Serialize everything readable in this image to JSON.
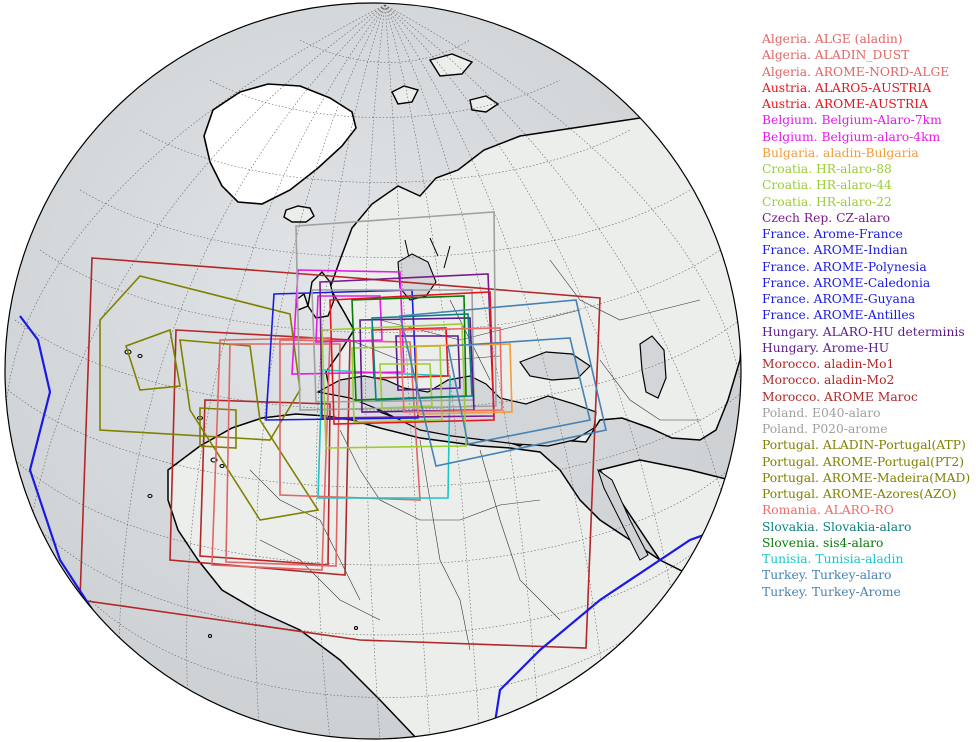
{
  "domains": [
    {
      "label": "Algeria. ALGE (aladin)",
      "color": "#e06666"
    },
    {
      "label": "Algeria. ALADIN_DUST",
      "color": "#e06666"
    },
    {
      "label": "Algeria. AROME-NORD-ALGE",
      "color": "#e06666"
    },
    {
      "label": "Austria. ALARO5-AUSTRIA",
      "color": "#e8141c"
    },
    {
      "label": "Austria. AROME-AUSTRIA",
      "color": "#e8141c"
    },
    {
      "label": "Belgium. Belgium-Alaro-7km",
      "color": "#e619e6"
    },
    {
      "label": "Belgium. Belgium-alaro-4km",
      "color": "#e619e6"
    },
    {
      "label": "Bulgaria. aladin-Bulgaria",
      "color": "#f39c3a"
    },
    {
      "label": "Croatia. HR-alaro-88",
      "color": "#9acd32"
    },
    {
      "label": "Croatia. HR-alaro-44",
      "color": "#9acd32"
    },
    {
      "label": "Croatia. HR-alaro-22",
      "color": "#9acd32"
    },
    {
      "label": "Czech Rep. CZ-alaro",
      "color": "#7a1a8c"
    },
    {
      "label": "France. Arome-France",
      "color": "#1a1ae6"
    },
    {
      "label": "France. AROME-Indian",
      "color": "#1a1ae6"
    },
    {
      "label": "France. AROME-Polynesia",
      "color": "#1a1ae6"
    },
    {
      "label": "France. AROME-Caledonia",
      "color": "#1a1ae6"
    },
    {
      "label": "France. AROME-Guyana",
      "color": "#1a1ae6"
    },
    {
      "label": "France. AROME-Antilles",
      "color": "#1a1ae6"
    },
    {
      "label": "Hungary. ALARO-HU determinis",
      "color": "#5b1a8c"
    },
    {
      "label": "Hungary. Arome-HU",
      "color": "#5b1a8c"
    },
    {
      "label": "Morocco. aladin-Mo1",
      "color": "#b22727"
    },
    {
      "label": "Morocco. aladin-Mo2",
      "color": "#b22727"
    },
    {
      "label": "Morocco. AROME Maroc",
      "color": "#b22727"
    },
    {
      "label": "Poland. E040-alaro",
      "color": "#a0a0a0"
    },
    {
      "label": "Poland. P020-arome",
      "color": "#a0a0a0"
    },
    {
      "label": "Portugal. ALADIN-Portugal(ATP)",
      "color": "#808000"
    },
    {
      "label": "Portugal. AROME-Portugal(PT2)",
      "color": "#808000"
    },
    {
      "label": "Portugal. AROME-Madeira(MAD)",
      "color": "#808000"
    },
    {
      "label": "Portugal. AROME-Azores(AZO)",
      "color": "#808000"
    },
    {
      "label": "Romania. ALARO-RO",
      "color": "#f06a6a"
    },
    {
      "label": "Slovakia. Slovakia-alaro",
      "color": "#0a7f7f"
    },
    {
      "label": "Slovenia. sis4-alaro",
      "color": "#0a7a0a"
    },
    {
      "label": "Tunisia. Tunisia-aladin",
      "color": "#1ac6c6"
    },
    {
      "label": "Turkey. Turkey-alaro",
      "color": "#4682b4"
    },
    {
      "label": "Turkey. Turkey-Arome",
      "color": "#4682b4"
    }
  ],
  "globe_colors": {
    "ocean": "#d4d8da",
    "land": "#eceeec",
    "ice": "#ffffff",
    "coast": "#000000",
    "border": "#333333",
    "grid": "#555555"
  }
}
